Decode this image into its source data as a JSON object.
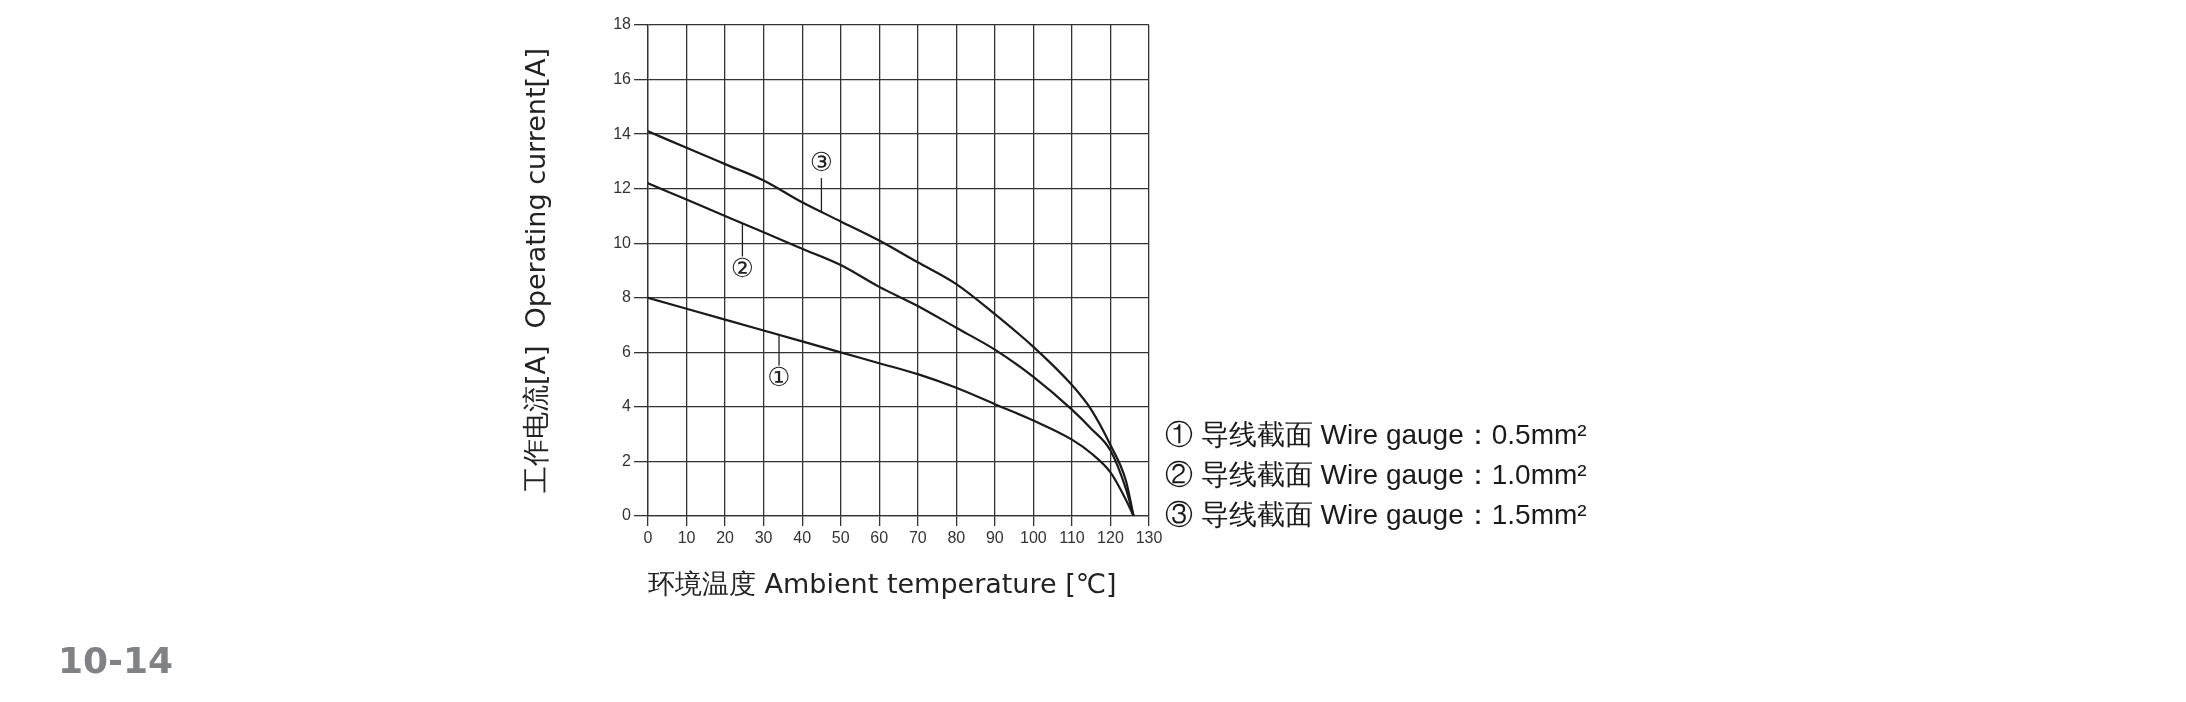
{
  "chart_data": {
    "type": "line",
    "xlabel": "环境温度 Ambient temperature [℃]",
    "ylabel": "工作电流[A]  Operating current[A]",
    "xlim": [
      0,
      130
    ],
    "xticks": [
      0,
      10,
      20,
      30,
      40,
      50,
      60,
      70,
      80,
      90,
      100,
      110,
      120,
      130
    ],
    "ylim": [
      0,
      18
    ],
    "yticks": [
      0,
      2,
      4,
      6,
      8,
      10,
      12,
      14,
      16,
      18
    ],
    "grid": true,
    "legend": "bottom right",
    "marker": "none",
    "line_style": "solid",
    "x": [
      0,
      10,
      20,
      30,
      40,
      50,
      60,
      70,
      80,
      90,
      100,
      110,
      115,
      120,
      124,
      126
    ],
    "series": [
      {
        "name": "① 导线截面 Wire gauge：0.5mm²",
        "color": "#1a1a1a",
        "values": [
          8.0,
          7.6,
          7.2,
          6.8,
          6.4,
          6.0,
          5.6,
          5.2,
          4.7,
          4.1,
          3.5,
          2.8,
          2.3,
          1.6,
          0.6,
          0
        ]
      },
      {
        "name": "② 导线截面 Wire gauge：1.0mm²",
        "color": "#1a1a1a",
        "values": [
          12.2,
          11.6,
          11.0,
          10.4,
          9.8,
          9.2,
          8.4,
          7.7,
          6.9,
          6.1,
          5.1,
          3.9,
          3.2,
          2.4,
          1.0,
          0
        ]
      },
      {
        "name": "③ 导线截面 Wire gauge：1.5mm²",
        "color": "#1a1a1a",
        "values": [
          14.1,
          13.5,
          12.9,
          12.3,
          11.5,
          10.8,
          10.1,
          9.3,
          8.5,
          7.4,
          6.2,
          4.8,
          3.9,
          2.6,
          1.3,
          0
        ]
      }
    ],
    "annotations": [
      {
        "text": "①",
        "x": 34,
        "y": 5.0
      },
      {
        "text": "②",
        "x": 24.5,
        "y": 9.0
      },
      {
        "text": "③",
        "x": 45,
        "y": 12.9
      },
      "10-14"
    ]
  }
}
